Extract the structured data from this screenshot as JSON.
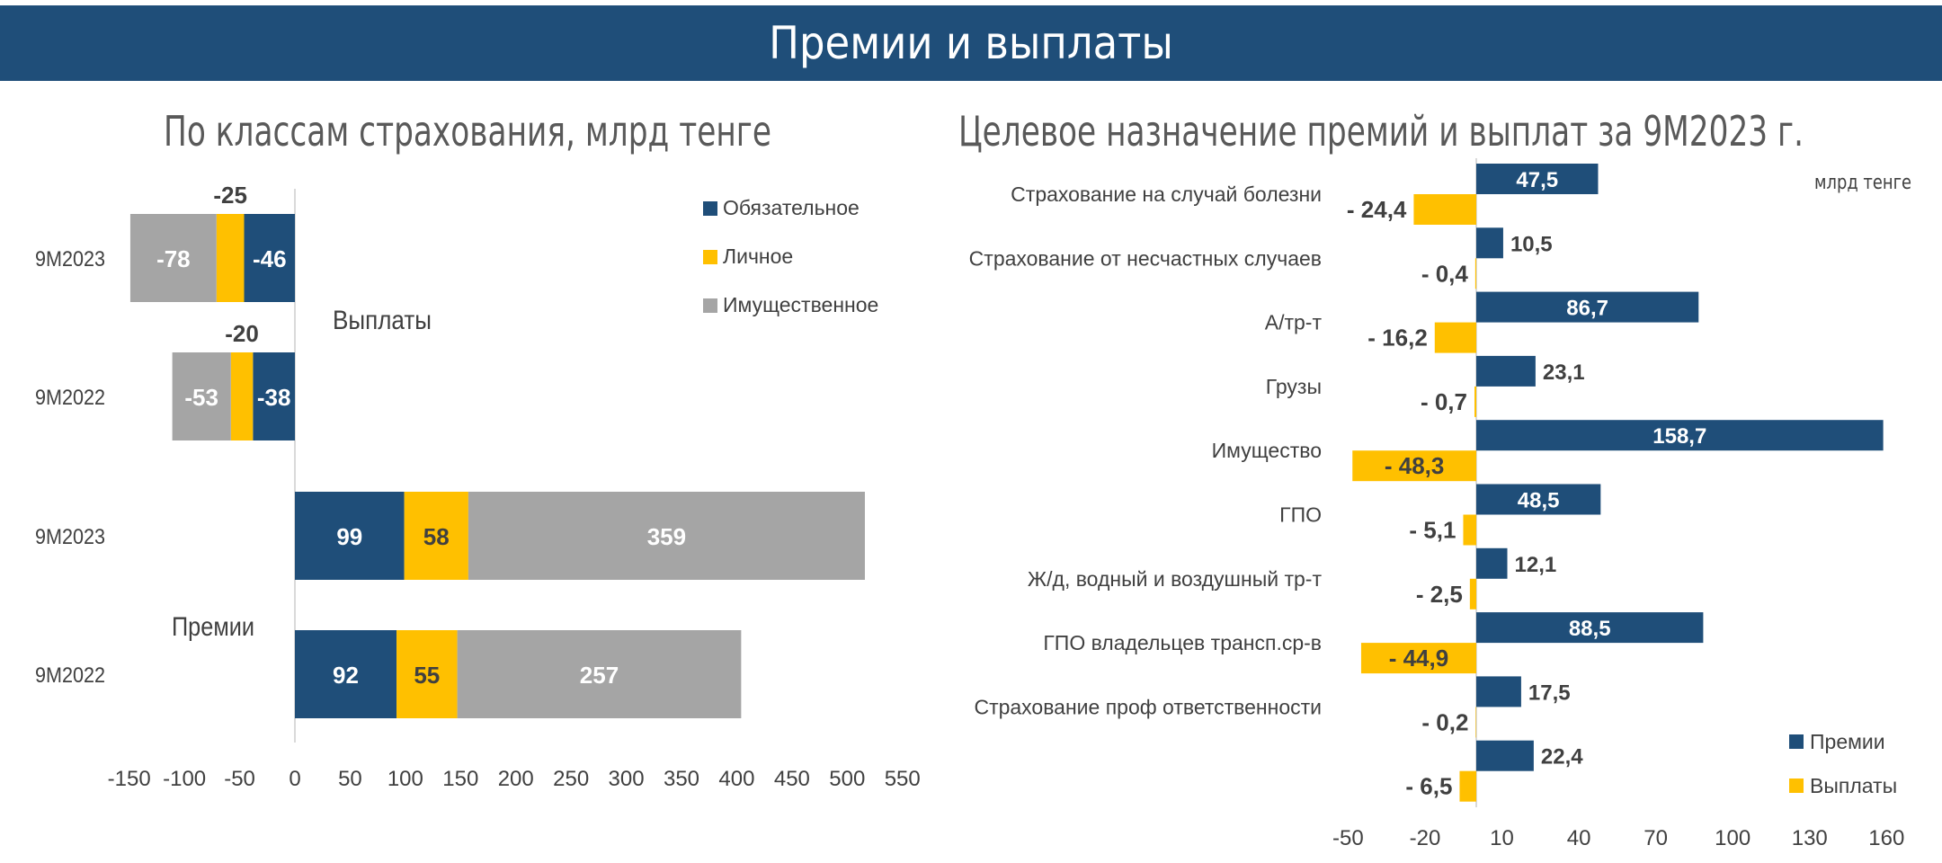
{
  "header": {
    "title": "Премии и выплаты"
  },
  "chart_data": [
    {
      "type": "bar",
      "orientation": "horizontal",
      "stacked": true,
      "title": "По классам страхования, млрд тенге",
      "categories": [
        "9M2023",
        "9M2022",
        "9M2023",
        "9M2022"
      ],
      "group_labels": [
        "Выплаты",
        "Премии"
      ],
      "series": [
        {
          "name": "Обязательное",
          "color": "#1f4e79",
          "values": [
            -46,
            -38,
            99,
            92
          ]
        },
        {
          "name": "Личное",
          "color": "#ffc000",
          "values": [
            -25,
            -20,
            58,
            55
          ]
        },
        {
          "name": "Имущественное",
          "color": "#a5a5a5",
          "values": [
            -78,
            -53,
            359,
            257
          ]
        }
      ],
      "xticks": [
        "-150",
        "-100",
        "-50",
        "0",
        "50",
        "100",
        "150",
        "200",
        "250",
        "300",
        "350",
        "400",
        "450",
        "500",
        "550"
      ],
      "xlim": [
        -150,
        550
      ],
      "legend": "top-right",
      "grid": false
    },
    {
      "type": "bar",
      "orientation": "horizontal",
      "title": "Целевое назначение премий и выплат за 9М2023 г.",
      "unit": "млрд тенге",
      "categories": [
        "Страхование на случай болезни",
        "Страхование от несчастных случаев",
        "А/тр-т",
        "Грузы",
        "Имущество",
        "ГПО",
        "Ж/д, водный и воздушный тр-т",
        "ГПО владельцев трансп.ср-в",
        "Страхование проф ответственности",
        ""
      ],
      "series": [
        {
          "name": "Премии",
          "color": "#1f4e79",
          "values": [
            47.5,
            10.5,
            86.7,
            23.1,
            158.7,
            48.5,
            12.1,
            88.5,
            17.5,
            22.4
          ],
          "labels": [
            "47,5",
            "10,5",
            "86,7",
            "23,1",
            "158,7",
            "48,5",
            "12,1",
            "88,5",
            "17,5",
            "22,4"
          ]
        },
        {
          "name": "Выплаты",
          "color": "#ffc000",
          "values": [
            -24.4,
            -0.4,
            -16.2,
            -0.7,
            -48.3,
            -5.1,
            -2.5,
            -44.9,
            -0.2,
            -6.5
          ],
          "labels": [
            "- 24,4",
            "- 0,4",
            "- 16,2",
            "- 0,7",
            "- 48,3",
            "- 5,1",
            "- 2,5",
            "- 44,9",
            "- 0,2",
            "- 6,5"
          ]
        }
      ],
      "xticks": [
        "-50",
        "-20",
        "10",
        "40",
        "70",
        "100",
        "130",
        "160"
      ],
      "xlim": [
        -50,
        160
      ],
      "legend": "bottom-right",
      "grid": false
    }
  ]
}
